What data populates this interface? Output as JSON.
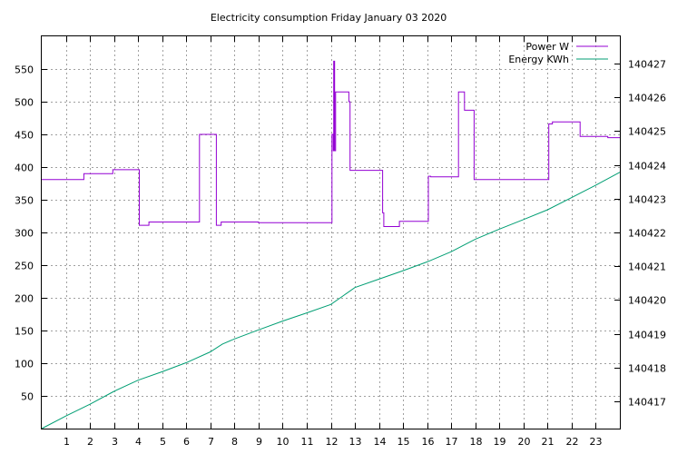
{
  "colors": {
    "power": "#9400d3",
    "energy": "#009e73",
    "axis": "#000000",
    "grid": "#a0a0a0"
  },
  "chart_data": {
    "type": "line",
    "title": "Electricity consumption Friday January 03 2020",
    "x_ticks": [
      "1",
      "2",
      "3",
      "4",
      "5",
      "6",
      "7",
      "8",
      "9",
      "10",
      "11",
      "12",
      "13",
      "14",
      "15",
      "16",
      "17",
      "18",
      "19",
      "20",
      "21",
      "22",
      "23"
    ],
    "xlim": [
      0,
      24
    ],
    "ylim": [
      0,
      600
    ],
    "y_ticks": [
      "50",
      "100",
      "150",
      "200",
      "250",
      "300",
      "350",
      "400",
      "450",
      "500",
      "550"
    ],
    "y2lim": [
      140416.2,
      140427.8
    ],
    "y2_ticks": [
      "140417",
      "140418",
      "140419",
      "140420",
      "140421",
      "140422",
      "140423",
      "140424",
      "140425",
      "140426",
      "140427"
    ],
    "legend_position": "top-right",
    "grid": true,
    "series": [
      {
        "name": "Power W",
        "axis": "left",
        "step": true,
        "x": [
          0,
          1.75,
          2.95,
          4.05,
          4.45,
          6.55,
          7.25,
          7.45,
          9.0,
          12.05,
          12.1,
          12.12,
          12.16,
          12.2,
          12.75,
          12.8,
          14.15,
          14.2,
          14.85,
          16.05,
          16.15,
          17.3,
          17.55,
          17.95,
          21.05,
          21.2,
          22.35,
          23.5,
          24
        ],
        "values": [
          381,
          390,
          396,
          311,
          316,
          450,
          311,
          316,
          315,
          450,
          425,
          562,
          425,
          515,
          500,
          395,
          330,
          309,
          317,
          386,
          385,
          515,
          487,
          381,
          466,
          469,
          447,
          445,
          445
        ]
      },
      {
        "name": "Energy KWh",
        "axis": "right",
        "step": false,
        "x": [
          0,
          1,
          2,
          3,
          4,
          5,
          6,
          7,
          7.5,
          8,
          9,
          10,
          11,
          12,
          12.5,
          13,
          14,
          15,
          16,
          17,
          18,
          19,
          20,
          21,
          22,
          23,
          24
        ],
        "values": [
          140416.2,
          140416.57,
          140416.92,
          140417.3,
          140417.63,
          140417.88,
          140418.15,
          140418.47,
          140418.7,
          140418.85,
          140419.12,
          140419.38,
          140419.62,
          140419.87,
          140420.12,
          140420.37,
          140420.62,
          140420.87,
          140421.13,
          140421.43,
          140421.8,
          140422.1,
          140422.38,
          140422.67,
          140423.03,
          140423.4,
          140423.78
        ]
      }
    ]
  }
}
